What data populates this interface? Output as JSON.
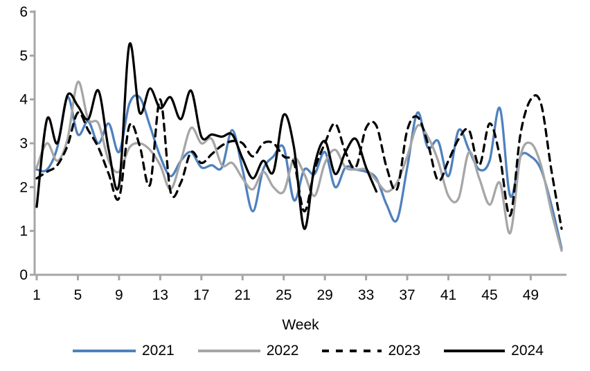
{
  "chart_data": {
    "type": "line",
    "title": "",
    "xlabel": "Week",
    "ylabel": "",
    "ylim": [
      0,
      6
    ],
    "y_ticks": [
      0,
      1,
      2,
      3,
      4,
      5,
      6
    ],
    "x_ticks": [
      1,
      5,
      9,
      13,
      17,
      21,
      25,
      29,
      33,
      37,
      41,
      45,
      49
    ],
    "x_range": [
      1,
      52
    ],
    "grid": "off",
    "legend_position": "bottom",
    "axis_color": "#a6a6a6",
    "series": [
      {
        "name": "2021",
        "color": "#4f81bd",
        "style": "solid",
        "values": [
          2.4,
          2.4,
          2.9,
          4.05,
          3.2,
          3.5,
          3.0,
          3.45,
          2.8,
          3.9,
          4.05,
          3.4,
          2.7,
          2.25,
          2.6,
          2.8,
          2.45,
          2.5,
          2.45,
          3.3,
          2.4,
          1.45,
          2.4,
          2.7,
          2.9,
          1.7,
          2.4,
          2.3,
          2.8,
          2.0,
          2.45,
          2.4,
          2.35,
          2.2,
          1.6,
          1.25,
          2.45,
          3.7,
          2.9,
          3.05,
          2.25,
          3.3,
          2.85,
          2.4,
          2.6,
          3.8,
          1.8,
          2.7,
          2.7,
          2.4,
          1.6,
          0.6
        ]
      },
      {
        "name": "2022",
        "color": "#a6a6a6",
        "style": "solid",
        "values": [
          2.45,
          3.0,
          2.6,
          3.1,
          4.4,
          3.55,
          3.45,
          2.6,
          2.35,
          2.9,
          3.0,
          2.85,
          2.5,
          1.95,
          2.6,
          3.35,
          3.0,
          3.1,
          2.5,
          2.55,
          2.2,
          1.95,
          2.35,
          2.0,
          1.9,
          2.65,
          2.3,
          1.8,
          2.55,
          2.85,
          2.45,
          2.4,
          2.4,
          2.15,
          1.9,
          2.1,
          2.7,
          3.4,
          3.15,
          2.6,
          1.8,
          1.75,
          2.8,
          2.2,
          1.6,
          2.1,
          0.95,
          2.7,
          3.0,
          2.5,
          1.45,
          0.55
        ]
      },
      {
        "name": "2023",
        "color": "#000000",
        "style": "dashed",
        "values": [
          2.2,
          2.35,
          2.5,
          2.95,
          3.7,
          3.3,
          2.9,
          2.3,
          1.75,
          3.4,
          2.95,
          2.05,
          4.0,
          1.9,
          2.1,
          2.8,
          2.55,
          2.75,
          2.95,
          3.05,
          3.0,
          2.7,
          3.0,
          3.0,
          2.7,
          2.55,
          1.45,
          2.4,
          3.0,
          3.45,
          2.8,
          2.45,
          3.35,
          3.4,
          2.45,
          1.95,
          3.3,
          3.6,
          3.0,
          2.15,
          2.6,
          3.1,
          3.3,
          2.5,
          3.45,
          2.7,
          1.35,
          3.2,
          4.0,
          3.9,
          2.4,
          1.05
        ]
      },
      {
        "name": "2024",
        "color": "#000000",
        "style": "solid",
        "values": [
          1.55,
          3.55,
          3.0,
          4.1,
          3.85,
          3.55,
          4.2,
          2.85,
          2.05,
          5.25,
          3.7,
          4.25,
          3.8,
          4.05,
          3.55,
          4.2,
          3.15,
          3.2,
          3.15,
          3.2,
          2.65,
          2.2,
          2.6,
          2.35,
          3.65,
          2.9,
          1.05,
          2.5,
          3.05,
          2.3,
          2.8,
          3.1,
          2.45,
          1.9
        ]
      }
    ]
  }
}
